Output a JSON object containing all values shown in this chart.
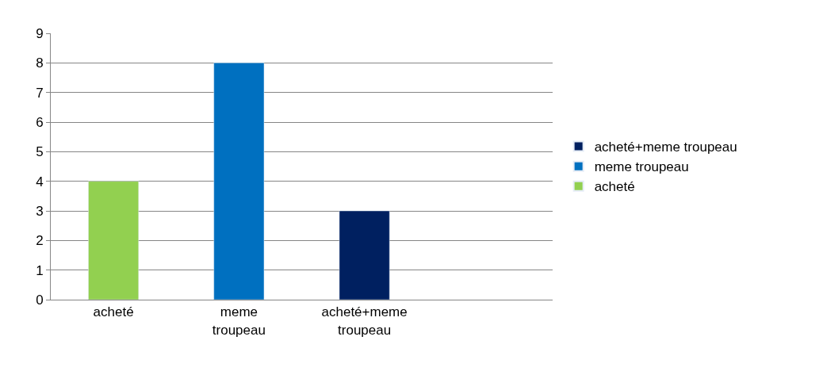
{
  "chart_data": {
    "type": "bar",
    "stacked": true,
    "categories": [
      "acheté",
      "meme troupeau",
      "acheté+meme troupeau",
      null
    ],
    "series": [
      {
        "name": "acheté",
        "color": "#92d050",
        "values": [
          4,
          null,
          null,
          null
        ]
      },
      {
        "name": "meme troupeau",
        "color": "#0070c0",
        "values": [
          null,
          8,
          null,
          null
        ]
      },
      {
        "name": "acheté+meme troupeau",
        "color": "#002060",
        "values": [
          null,
          null,
          3,
          null
        ]
      }
    ],
    "ylim": [
      0,
      9
    ],
    "yticks": [
      0,
      1,
      2,
      3,
      4,
      5,
      6,
      7,
      8,
      9
    ],
    "grid": "y",
    "legend": "right"
  }
}
